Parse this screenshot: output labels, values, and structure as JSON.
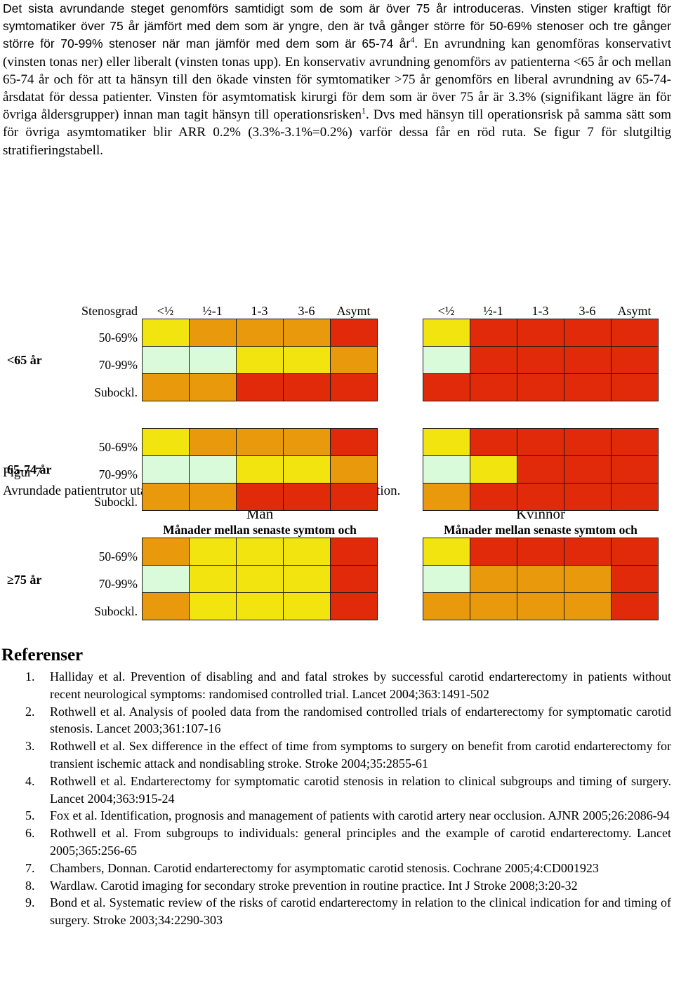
{
  "intro": {
    "p1_sans": "Det sista avrundande steget genomförs samtidigt som de som är över 75 år introduceras. Vinsten stiger kraftigt för symtomatiker över 75 år jämfört med dem som är yngre, den är två gånger större för 50-69% stenoser och tre gånger större för 70-99% stenoser när man jämför med dem som är 65-74 år",
    "sup1": "4",
    "p2": ". En avrundning kan genomföras konservativt (vinsten tonas ner) eller liberalt (vinsten tonas upp). En konservativ avrundning genomförs av patienterna <65 år och mellan 65-74 år och för att ta hänsyn till den ökade vinsten för symtomatiker >75 år genomförs en liberal avrundning av 65-74-årsdatat för dessa patienter. Vinsten för asymtomatisk kirurgi för dem som är över 75 år är 3.3% (signifikant lägre än för övriga åldersgrupper) innan man tagit hänsyn till operationsrisken",
    "sup2": "1",
    "p3": ". Dvs med hänsyn till operationsrisk på samma sätt som för övriga asymtomatiker blir ARR 0.2% (3.3%-3.1%=0.2%) varför dessa får en röd ruta. Se figur 7 för slutgiltig stratifieringstabell."
  },
  "figure": {
    "label": "Figur 7",
    "caption": "Avrundade patientrutor utan specifik redovisning av absolut riskreduktion.",
    "men_title": "Män",
    "women_title": "Kvinnor",
    "subtitle": "Månader mellan senaste symtom och operation",
    "stenosgrad_label": "Stenosgrad",
    "columns": [
      "<½",
      "½-1",
      "1-3",
      "3-6",
      "Asymt"
    ],
    "row_labels": [
      "50-69%",
      "70-99%",
      "Subockl."
    ],
    "palette": {
      "Y": "#f2e40f",
      "O": "#e89a0c",
      "R": "#e02a0a",
      "G": "#d9fbd9"
    },
    "age_groups": [
      {
        "label": "<65 år",
        "men": [
          "YOOOR",
          "GGYYO",
          "OORRR"
        ],
        "women": [
          "YRRRR",
          "GRRRR",
          "RRRRR"
        ]
      },
      {
        "label": "65-74 år",
        "men": [
          "YOOOR",
          "GGYYO",
          "OORRR"
        ],
        "women": [
          "YRRRR",
          "GYRRR",
          "ORRRR"
        ]
      },
      {
        "label": "≥75 år",
        "men": [
          "OYYYR",
          "GYYYR",
          "OYYYR"
        ],
        "women": [
          "YRRRR",
          "GOOOR",
          "OOOOR"
        ]
      }
    ]
  },
  "references": {
    "title": "Referenser",
    "items": [
      "Halliday et al. Prevention of disabling and and fatal strokes by successful carotid endarterectomy in patients without recent neurological symptoms: randomised controlled trial. Lancet 2004;363:1491-502",
      "Rothwell et al. Analysis of pooled data from the randomised controlled trials of endarterectomy for symptomatic carotid stenosis. Lancet 2003;361:107-16",
      "Rothwell et al. Sex difference in the effect of time from symptoms to surgery on benefit from carotid endarterectomy for transient ischemic attack and nondisabling stroke. Stroke 2004;35:2855-61",
      "Rothwell et al. Endarterectomy for symptomatic carotid stenosis in relation to clinical subgroups and timing of surgery. Lancet 2004;363:915-24",
      "Fox et al. Identification, prognosis and management of patients with carotid artery near occlusion. AJNR 2005;26:2086-94",
      "Rothwell et al. From subgroups to individuals: general principles and the example of carotid endarterectomy. Lancet 2005;365:256-65",
      "Chambers, Donnan. Carotid endarterectomy for asymptomatic carotid stenosis. Cochrane 2005;4:CD001923",
      "Wardlaw. Carotid imaging for secondary stroke prevention in routine practice. Int J Stroke 2008;3:20-32",
      "Bond et al. Systematic review of the risks of carotid endarterectomy in relation to the clinical indication for and timing of surgery. Stroke 2003;34:2290-303"
    ]
  }
}
